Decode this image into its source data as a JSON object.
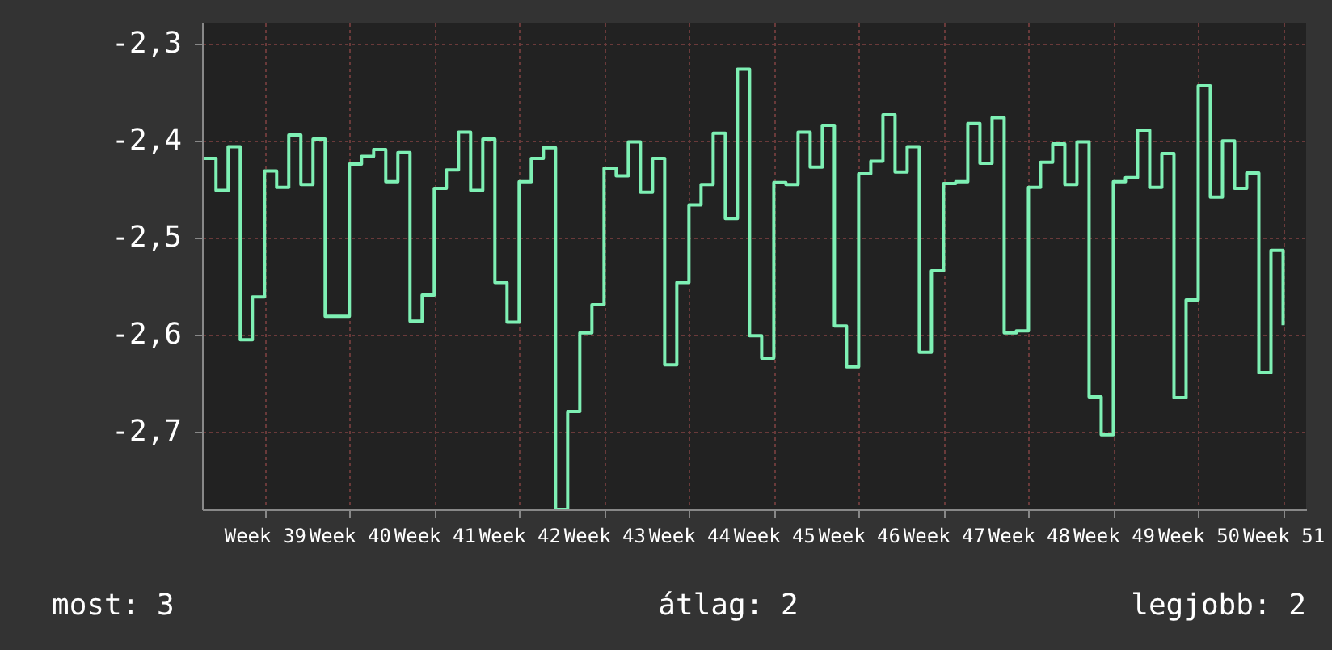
{
  "chart_data": {
    "type": "step",
    "categories": [
      null,
      null,
      null,
      null,
      null,
      "Week 39",
      null,
      null,
      null,
      null,
      null,
      null,
      "Week 40",
      null,
      null,
      null,
      null,
      null,
      null,
      "Week 41",
      null,
      null,
      null,
      null,
      null,
      null,
      "Week 42",
      null,
      null,
      null,
      null,
      null,
      null,
      "Week 43",
      null,
      null,
      null,
      null,
      null,
      null,
      "Week 44",
      null,
      null,
      null,
      null,
      null,
      null,
      "Week 45",
      null,
      null,
      null,
      null,
      null,
      null,
      "Week 46",
      null,
      null,
      null,
      null,
      null,
      null,
      "Week 47",
      null,
      null,
      null,
      null,
      null,
      null,
      "Week 48",
      null,
      null,
      null,
      null,
      null,
      null,
      "Week 49",
      null,
      null,
      null,
      null,
      null,
      null,
      "Week 50",
      null,
      null,
      null,
      null,
      null,
      null,
      "Week 51"
    ],
    "series": [
      {
        "color": "#7ef0b4",
        "values": [
          -2.418,
          -2.451,
          -2.406,
          -2.605,
          -2.561,
          -2.431,
          -2.448,
          -2.394,
          -2.445,
          -2.398,
          -2.581,
          -2.581,
          -2.424,
          -2.416,
          -2.409,
          -2.442,
          -2.412,
          -2.586,
          -2.559,
          -2.449,
          -2.43,
          -2.391,
          -2.451,
          -2.398,
          -2.546,
          -2.587,
          -2.442,
          -2.418,
          -2.407,
          -2.78,
          -2.679,
          -2.598,
          -2.569,
          -2.428,
          -2.436,
          -2.401,
          -2.453,
          -2.418,
          -2.631,
          -2.546,
          -2.466,
          -2.445,
          -2.392,
          -2.48,
          -2.326,
          -2.601,
          -2.624,
          -2.443,
          -2.445,
          -2.391,
          -2.427,
          -2.384,
          -2.591,
          -2.633,
          -2.434,
          -2.421,
          -2.373,
          -2.432,
          -2.406,
          -2.618,
          -2.534,
          -2.444,
          -2.442,
          -2.382,
          -2.423,
          -2.376,
          -2.598,
          -2.596,
          -2.448,
          -2.422,
          -2.403,
          -2.445,
          -2.401,
          -2.664,
          -2.703,
          -2.442,
          -2.438,
          -2.389,
          -2.448,
          -2.413,
          -2.665,
          -2.564,
          -2.343,
          -2.458,
          -2.4,
          -2.449,
          -2.433,
          -2.639,
          -2.513,
          -2.59
        ]
      }
    ],
    "ylim": [
      -2.78,
      -2.278
    ],
    "yticks": [
      {
        "value": -2.7,
        "label": "-2,7"
      },
      {
        "value": -2.6,
        "label": "-2,6"
      },
      {
        "value": -2.5,
        "label": "-2,5"
      },
      {
        "value": -2.4,
        "label": "-2,4"
      },
      {
        "value": -2.3,
        "label": "-2,3"
      }
    ],
    "grid": true,
    "marker": "none",
    "line_style": "solid",
    "annotations": [
      "most: 3",
      "átlag: 2",
      "legjobb: 2"
    ]
  }
}
